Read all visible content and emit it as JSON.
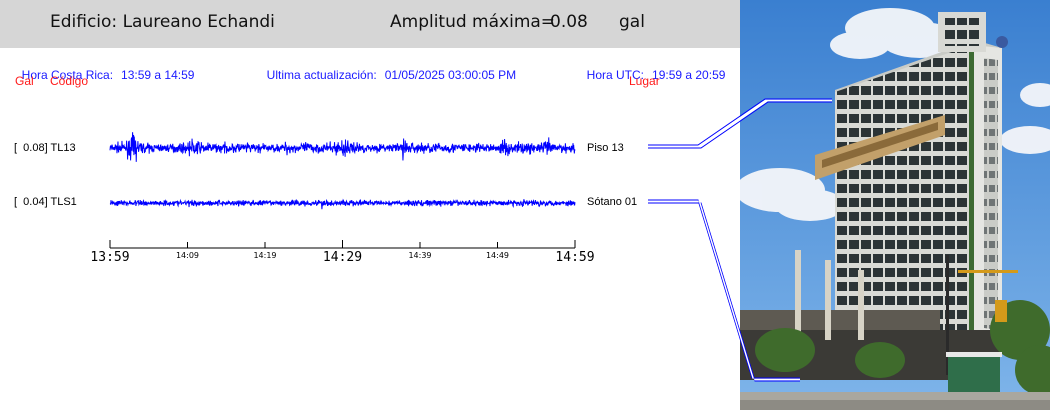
{
  "header": {
    "building": "Edificio: Laureano Echandi",
    "amplitude_label": "Amplitud máxima=",
    "amplitude_value": "0.08",
    "amplitude_unit": "gal"
  },
  "info": {
    "local_label": "Hora Costa Rica:",
    "local_value": "13:59 a 14:59",
    "update_label": "Ultima actualización:",
    "update_value": "01/05/2025 03:00:05 PM",
    "utc_label": "Hora UTC:",
    "utc_value": "19:59 a 20:59"
  },
  "columns": {
    "gal": "Gal",
    "code": "Código",
    "place": "Lugar"
  },
  "chart_data": {
    "type": "line",
    "color": "#0000ff",
    "x_ticks_major": [
      "13:59",
      "14:29",
      "14:59"
    ],
    "x_ticks_minor": [
      "14:09",
      "14:19",
      "14:39",
      "14:49"
    ],
    "series": [
      {
        "name": "TL13",
        "gal": "0.08",
        "label": "[  0.08] TL13",
        "place": "Piso 13",
        "peak": 0.08
      },
      {
        "name": "TLS1",
        "gal": "0.04",
        "label": "[  0.04] TLS1",
        "place": "Sótano 01",
        "peak": 0.04
      }
    ]
  },
  "photo": {
    "subject": "Edificio Laureano Echandi building photo",
    "sky_color": "#4a8fd8",
    "facade_color": "#e8e8e4"
  }
}
